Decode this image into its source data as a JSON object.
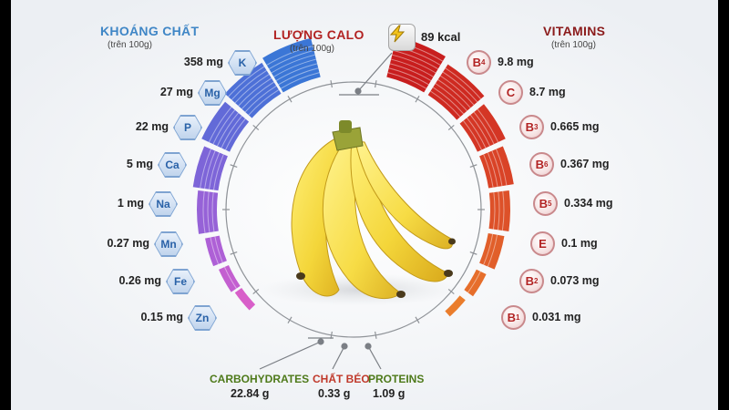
{
  "calories": {
    "title": "LƯỢNG CALO",
    "subtitle": "(trên 100g)",
    "value": "89 kcal",
    "icon": "lightning-icon"
  },
  "minerals": {
    "title": "KHOÁNG CHẤT",
    "subtitle": "(trên 100g)",
    "items": [
      {
        "symbol": "K",
        "value": "358 mg"
      },
      {
        "symbol": "Mg",
        "value": "27 mg"
      },
      {
        "symbol": "P",
        "value": "22 mg"
      },
      {
        "symbol": "Ca",
        "value": "5 mg"
      },
      {
        "symbol": "Na",
        "value": "1 mg"
      },
      {
        "symbol": "Mn",
        "value": "0.27 mg"
      },
      {
        "symbol": "Fe",
        "value": "0.26 mg"
      },
      {
        "symbol": "Zn",
        "value": "0.15 mg"
      }
    ]
  },
  "vitamins": {
    "title": "VITAMINS",
    "subtitle": "(trên 100g)",
    "items": [
      {
        "letter": "B",
        "sub": "4",
        "value": "9.8 mg"
      },
      {
        "letter": "C",
        "sub": "",
        "value": "8.7 mg"
      },
      {
        "letter": "B",
        "sub": "3",
        "value": "0.665 mg"
      },
      {
        "letter": "B",
        "sub": "6",
        "value": "0.367 mg"
      },
      {
        "letter": "B",
        "sub": "5",
        "value": "0.334 mg"
      },
      {
        "letter": "E",
        "sub": "",
        "value": "0.1 mg"
      },
      {
        "letter": "B",
        "sub": "2",
        "value": "0.073 mg"
      },
      {
        "letter": "B",
        "sub": "1",
        "value": "0.031 mg"
      }
    ]
  },
  "macros": [
    {
      "label": "CARBOHYDRATES",
      "value": "22.84 g",
      "color": "#4e7a1a"
    },
    {
      "label": "CHẤT BÉO",
      "value": "0.33 g",
      "color": "#c0392b"
    },
    {
      "label": "PROTEINS",
      "value": "1.09 g",
      "color": "#4e7a1a"
    }
  ],
  "colors": {
    "mineral_title": "#3f86c6",
    "calorie_title": "#b22323",
    "vitamin_title": "#8b1b1b",
    "mineral_gradient": [
      "#3b76d6",
      "#5b6bd8",
      "#8a63d8",
      "#b45fd6",
      "#d85fc9"
    ],
    "vitamin_gradient": [
      "#c81e1e",
      "#d63a26",
      "#e05a2a",
      "#ea7d2c"
    ]
  }
}
